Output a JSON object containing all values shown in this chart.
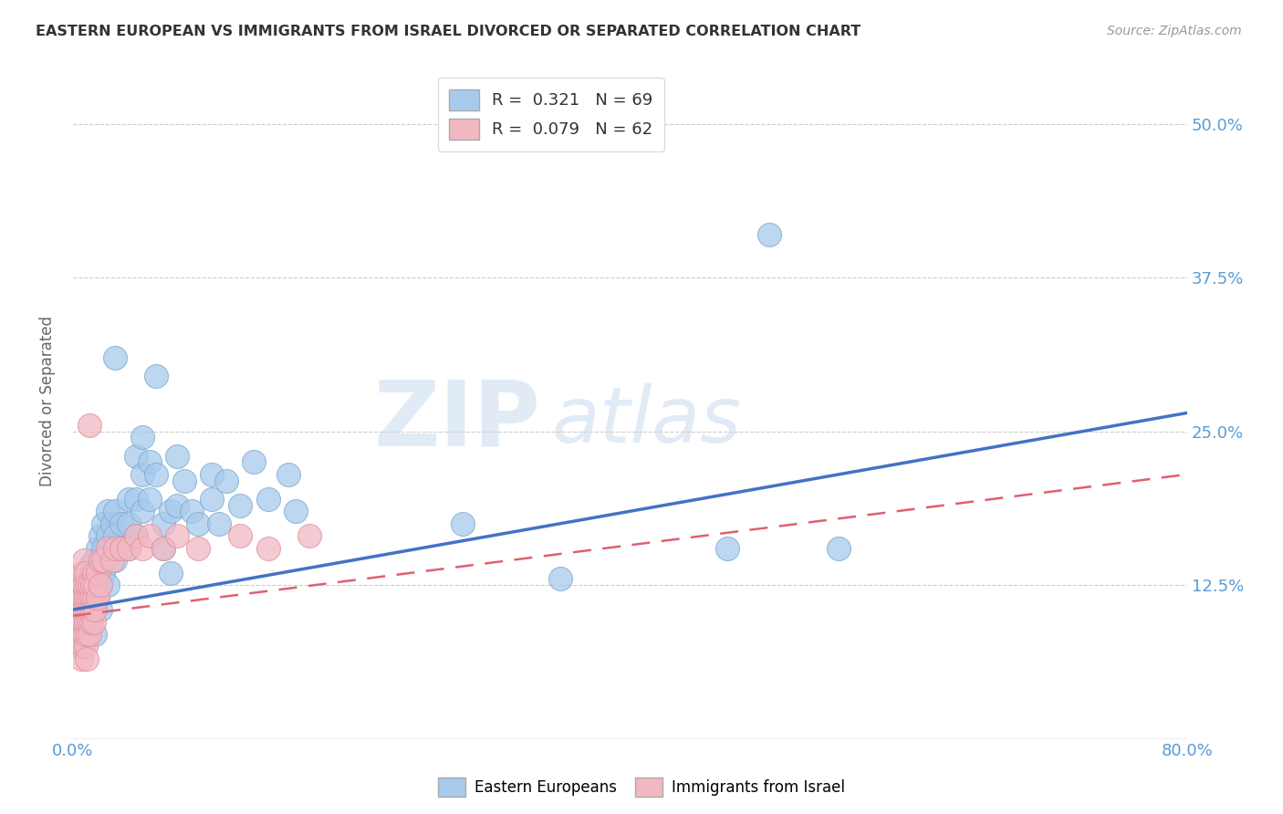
{
  "title": "EASTERN EUROPEAN VS IMMIGRANTS FROM ISRAEL DIVORCED OR SEPARATED CORRELATION CHART",
  "source": "Source: ZipAtlas.com",
  "ylabel": "Divorced or Separated",
  "xlim": [
    0.0,
    0.8
  ],
  "ylim": [
    0.0,
    0.55
  ],
  "yticks": [
    0.125,
    0.25,
    0.375,
    0.5
  ],
  "yticklabels": [
    "12.5%",
    "25.0%",
    "37.5%",
    "50.0%"
  ],
  "legend_r_blue": "0.321",
  "legend_n_blue": "69",
  "legend_r_pink": "0.079",
  "legend_n_pink": "62",
  "blue_color": "#A8CAEC",
  "pink_color": "#F2B8C2",
  "trend_blue_color": "#4472C4",
  "trend_pink_color": "#E06070",
  "watermark_zip": "ZIP",
  "watermark_atlas": "atlas",
  "background_color": "#FFFFFF",
  "grid_color": "#CCCCCC",
  "blue_trend": [
    0.0,
    0.105,
    0.8,
    0.265
  ],
  "pink_trend": [
    0.0,
    0.1,
    0.8,
    0.215
  ],
  "blue_scatter": [
    [
      0.005,
      0.115
    ],
    [
      0.008,
      0.125
    ],
    [
      0.01,
      0.135
    ],
    [
      0.01,
      0.115
    ],
    [
      0.012,
      0.14
    ],
    [
      0.012,
      0.105
    ],
    [
      0.013,
      0.095
    ],
    [
      0.015,
      0.145
    ],
    [
      0.015,
      0.125
    ],
    [
      0.015,
      0.105
    ],
    [
      0.016,
      0.085
    ],
    [
      0.018,
      0.155
    ],
    [
      0.018,
      0.135
    ],
    [
      0.018,
      0.115
    ],
    [
      0.02,
      0.165
    ],
    [
      0.02,
      0.145
    ],
    [
      0.02,
      0.125
    ],
    [
      0.02,
      0.105
    ],
    [
      0.022,
      0.175
    ],
    [
      0.022,
      0.155
    ],
    [
      0.022,
      0.135
    ],
    [
      0.025,
      0.185
    ],
    [
      0.025,
      0.165
    ],
    [
      0.025,
      0.145
    ],
    [
      0.025,
      0.125
    ],
    [
      0.028,
      0.175
    ],
    [
      0.028,
      0.155
    ],
    [
      0.03,
      0.31
    ],
    [
      0.03,
      0.185
    ],
    [
      0.03,
      0.165
    ],
    [
      0.03,
      0.145
    ],
    [
      0.035,
      0.175
    ],
    [
      0.035,
      0.155
    ],
    [
      0.04,
      0.195
    ],
    [
      0.04,
      0.175
    ],
    [
      0.04,
      0.155
    ],
    [
      0.045,
      0.23
    ],
    [
      0.045,
      0.195
    ],
    [
      0.045,
      0.165
    ],
    [
      0.05,
      0.245
    ],
    [
      0.05,
      0.215
    ],
    [
      0.05,
      0.185
    ],
    [
      0.055,
      0.225
    ],
    [
      0.055,
      0.195
    ],
    [
      0.06,
      0.295
    ],
    [
      0.06,
      0.215
    ],
    [
      0.065,
      0.175
    ],
    [
      0.065,
      0.155
    ],
    [
      0.07,
      0.135
    ],
    [
      0.07,
      0.185
    ],
    [
      0.075,
      0.23
    ],
    [
      0.075,
      0.19
    ],
    [
      0.08,
      0.21
    ],
    [
      0.085,
      0.185
    ],
    [
      0.09,
      0.175
    ],
    [
      0.1,
      0.215
    ],
    [
      0.1,
      0.195
    ],
    [
      0.105,
      0.175
    ],
    [
      0.11,
      0.21
    ],
    [
      0.12,
      0.19
    ],
    [
      0.13,
      0.225
    ],
    [
      0.14,
      0.195
    ],
    [
      0.155,
      0.215
    ],
    [
      0.16,
      0.185
    ],
    [
      0.28,
      0.175
    ],
    [
      0.35,
      0.13
    ],
    [
      0.47,
      0.155
    ],
    [
      0.5,
      0.41
    ],
    [
      0.55,
      0.155
    ]
  ],
  "pink_scatter": [
    [
      0.003,
      0.115
    ],
    [
      0.003,
      0.095
    ],
    [
      0.004,
      0.13
    ],
    [
      0.004,
      0.105
    ],
    [
      0.004,
      0.085
    ],
    [
      0.005,
      0.115
    ],
    [
      0.005,
      0.095
    ],
    [
      0.005,
      0.075
    ],
    [
      0.006,
      0.125
    ],
    [
      0.006,
      0.105
    ],
    [
      0.006,
      0.085
    ],
    [
      0.006,
      0.065
    ],
    [
      0.007,
      0.135
    ],
    [
      0.007,
      0.115
    ],
    [
      0.007,
      0.095
    ],
    [
      0.007,
      0.075
    ],
    [
      0.008,
      0.145
    ],
    [
      0.008,
      0.125
    ],
    [
      0.008,
      0.105
    ],
    [
      0.008,
      0.085
    ],
    [
      0.009,
      0.135
    ],
    [
      0.009,
      0.115
    ],
    [
      0.009,
      0.095
    ],
    [
      0.009,
      0.075
    ],
    [
      0.01,
      0.125
    ],
    [
      0.01,
      0.105
    ],
    [
      0.01,
      0.085
    ],
    [
      0.01,
      0.065
    ],
    [
      0.011,
      0.115
    ],
    [
      0.011,
      0.095
    ],
    [
      0.012,
      0.255
    ],
    [
      0.012,
      0.125
    ],
    [
      0.012,
      0.105
    ],
    [
      0.012,
      0.085
    ],
    [
      0.013,
      0.115
    ],
    [
      0.013,
      0.095
    ],
    [
      0.014,
      0.125
    ],
    [
      0.014,
      0.105
    ],
    [
      0.015,
      0.135
    ],
    [
      0.015,
      0.115
    ],
    [
      0.015,
      0.095
    ],
    [
      0.016,
      0.125
    ],
    [
      0.016,
      0.105
    ],
    [
      0.018,
      0.135
    ],
    [
      0.018,
      0.115
    ],
    [
      0.02,
      0.145
    ],
    [
      0.02,
      0.125
    ],
    [
      0.022,
      0.145
    ],
    [
      0.025,
      0.155
    ],
    [
      0.028,
      0.145
    ],
    [
      0.03,
      0.155
    ],
    [
      0.035,
      0.155
    ],
    [
      0.04,
      0.155
    ],
    [
      0.045,
      0.165
    ],
    [
      0.05,
      0.155
    ],
    [
      0.055,
      0.165
    ],
    [
      0.065,
      0.155
    ],
    [
      0.075,
      0.165
    ],
    [
      0.09,
      0.155
    ],
    [
      0.12,
      0.165
    ],
    [
      0.14,
      0.155
    ],
    [
      0.17,
      0.165
    ]
  ]
}
